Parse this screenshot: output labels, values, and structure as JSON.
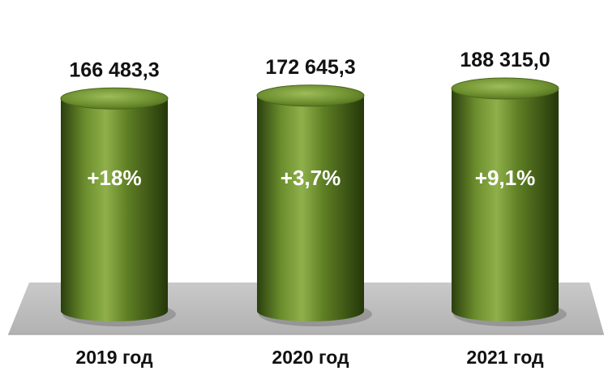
{
  "chart_data": {
    "type": "bar",
    "categories": [
      "2019 год",
      "2020 год",
      "2021 год"
    ],
    "values": [
      166483.3,
      172645.3,
      188315.0
    ],
    "value_labels": [
      "166 483,3",
      "172 645,3",
      "188 315,0"
    ],
    "growth_labels": [
      "+18%",
      "+3,7%",
      "+9,1%"
    ],
    "title": "",
    "xlabel": "",
    "ylabel": "",
    "ylim": [
      0,
      200000
    ],
    "grid": false,
    "legend": "none",
    "colors": {
      "bar_main": "#5b7a22",
      "bar_dark": "#2f4510",
      "bar_light": "#8fb04a",
      "bar_top": "#6f9130",
      "floor": "#bdbdbd",
      "value_text": "#111111",
      "growth_text": "#ffffff",
      "category_text": "#111111"
    }
  }
}
